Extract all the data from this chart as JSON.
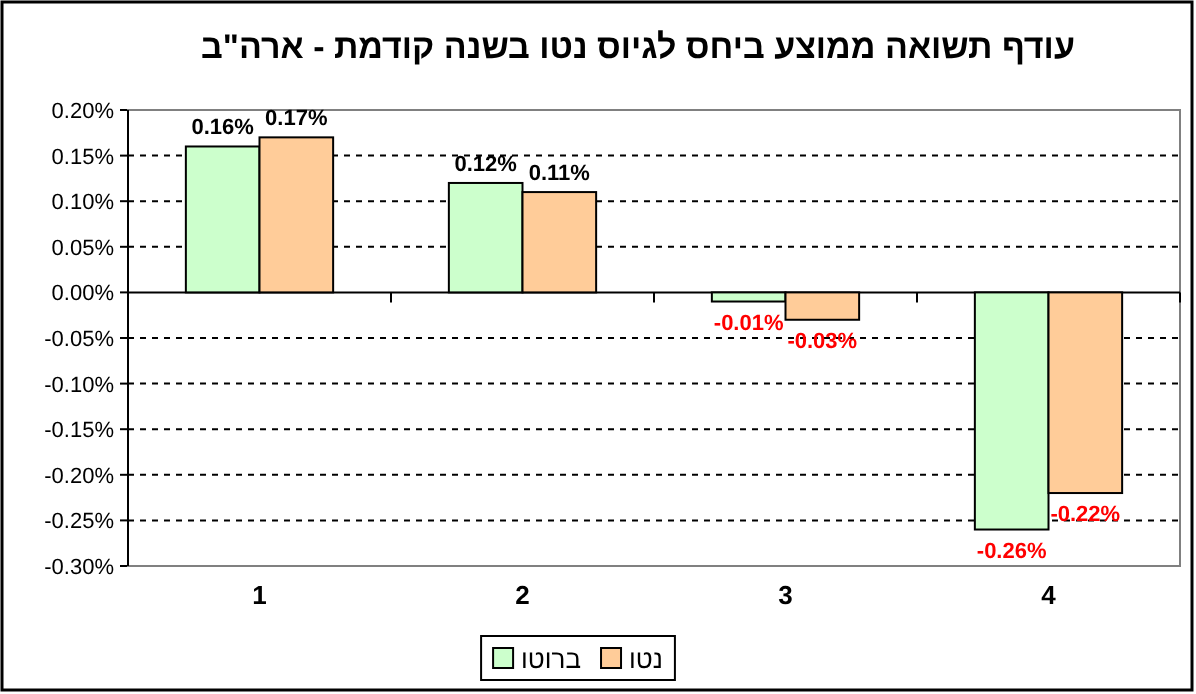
{
  "chart_data": {
    "type": "bar",
    "title": "עודף תשואה ממוצע ביחס לגיוס נטו בשנה קודמת - ארה\"ב",
    "categories": [
      "1",
      "2",
      "3",
      "4"
    ],
    "series": [
      {
        "name": "ברוטו",
        "color": "#ccffcc",
        "values": [
          0.16,
          0.12,
          -0.01,
          -0.26
        ],
        "value_labels": [
          "0.16%",
          "0.12%",
          "-0.01%",
          "-0.26%"
        ]
      },
      {
        "name": "נטו",
        "color": "#ffcc99",
        "values": [
          0.17,
          0.11,
          -0.03,
          -0.22
        ],
        "value_labels": [
          "0.17%",
          "0.11%",
          "-0.03%",
          "-0.22%"
        ]
      }
    ],
    "ylim": [
      -0.3,
      0.2
    ],
    "yticks": [
      {
        "value": 0.2,
        "label": "0.20%"
      },
      {
        "value": 0.15,
        "label": "0.15%"
      },
      {
        "value": 0.1,
        "label": "0.10%"
      },
      {
        "value": 0.05,
        "label": "0.05%"
      },
      {
        "value": 0,
        "label": "0.00%"
      },
      {
        "value": -0.05,
        "label": "-0.05%"
      },
      {
        "value": -0.1,
        "label": "-0.10%"
      },
      {
        "value": -0.15,
        "label": "-0.15%"
      },
      {
        "value": -0.2,
        "label": "-0.20%"
      },
      {
        "value": -0.25,
        "label": "-0.25%"
      },
      {
        "value": -0.3,
        "label": "-0.30%"
      }
    ],
    "grid": "y",
    "legend": "bottom"
  }
}
